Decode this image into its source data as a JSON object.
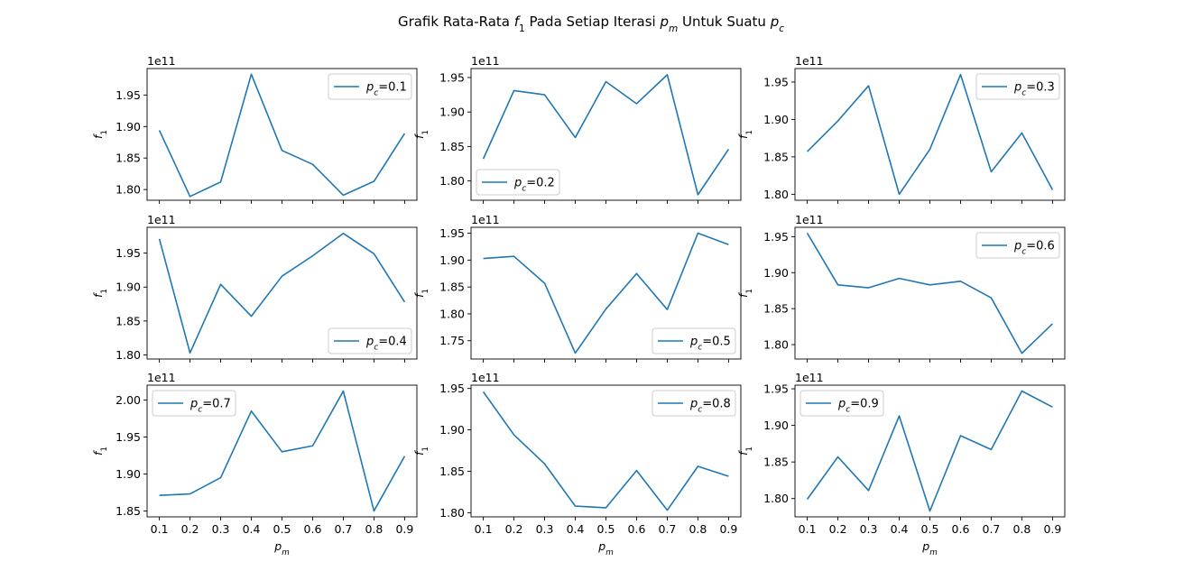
{
  "title": {
    "text": "Grafik Rata-Rata $f_1$ Pada Setiap Iterasi $p_m$ Untuk Suatu $p_c$",
    "parts": [
      {
        "t": "Grafik Rata-Rata "
      },
      {
        "t": "f",
        "i": true
      },
      {
        "t": "1",
        "sub": true
      },
      {
        "t": " Pada Setiap Iterasi "
      },
      {
        "t": "p",
        "i": true
      },
      {
        "t": "m",
        "sub": true,
        "i": true
      },
      {
        "t": " Untuk Suatu "
      },
      {
        "t": "p",
        "i": true
      },
      {
        "t": "c",
        "sub": true,
        "i": true
      }
    ]
  },
  "line_color": "#1f77b4",
  "chart_data": [
    {
      "type": "line",
      "x": [
        0.1,
        0.2,
        0.3,
        0.4,
        0.5,
        0.6,
        0.7,
        0.8,
        0.9
      ],
      "y": [
        1.894,
        1.789,
        1.812,
        1.983,
        1.862,
        1.84,
        1.791,
        1.813,
        1.889
      ],
      "offset": "1e11",
      "ylim": [
        1.783,
        1.992
      ],
      "yticks": [
        1.8,
        1.85,
        1.9,
        1.95
      ],
      "yticklabels": [
        "1.80",
        "1.85",
        "1.90",
        "1.95"
      ],
      "ylabel": "f1",
      "legend": {
        "label": "p_c=0.1",
        "loc": "upper-right"
      }
    },
    {
      "type": "line",
      "x": [
        0.1,
        0.2,
        0.3,
        0.4,
        0.5,
        0.6,
        0.7,
        0.8,
        0.9
      ],
      "y": [
        1.832,
        1.931,
        1.925,
        1.863,
        1.944,
        1.912,
        1.954,
        1.78,
        1.846
      ],
      "offset": "1e11",
      "ylim": [
        1.772,
        1.963
      ],
      "yticks": [
        1.8,
        1.85,
        1.9,
        1.95
      ],
      "yticklabels": [
        "1.80",
        "1.85",
        "1.90",
        "1.95"
      ],
      "ylabel": "f1",
      "legend": {
        "label": "p_c=0.2",
        "loc": "lower-left"
      }
    },
    {
      "type": "line",
      "x": [
        0.1,
        0.2,
        0.3,
        0.4,
        0.5,
        0.6,
        0.7,
        0.8,
        0.9
      ],
      "y": [
        1.857,
        1.898,
        1.945,
        1.8,
        1.86,
        1.96,
        1.83,
        1.882,
        1.806
      ],
      "offset": "1e11",
      "ylim": [
        1.792,
        1.968
      ],
      "yticks": [
        1.8,
        1.85,
        1.9,
        1.95
      ],
      "yticklabels": [
        "1.80",
        "1.85",
        "1.90",
        "1.95"
      ],
      "ylabel": "f1",
      "legend": {
        "label": "p_c=0.3",
        "loc": "upper-right"
      }
    },
    {
      "type": "line",
      "x": [
        0.1,
        0.2,
        0.3,
        0.4,
        0.5,
        0.6,
        0.7,
        0.8,
        0.9
      ],
      "y": [
        1.971,
        1.803,
        1.904,
        1.857,
        1.916,
        1.946,
        1.979,
        1.949,
        1.878
      ],
      "offset": "1e11",
      "ylim": [
        1.794,
        1.988
      ],
      "yticks": [
        1.8,
        1.85,
        1.9,
        1.95
      ],
      "yticklabels": [
        "1.80",
        "1.85",
        "1.90",
        "1.95"
      ],
      "ylabel": "f1",
      "legend": {
        "label": "p_c=0.4",
        "loc": "lower-right"
      }
    },
    {
      "type": "line",
      "x": [
        0.1,
        0.2,
        0.3,
        0.4,
        0.5,
        0.6,
        0.7,
        0.8,
        0.9
      ],
      "y": [
        1.903,
        1.907,
        1.857,
        1.727,
        1.809,
        1.875,
        1.808,
        1.95,
        1.929
      ],
      "offset": "1e11",
      "ylim": [
        1.716,
        1.961
      ],
      "yticks": [
        1.75,
        1.8,
        1.85,
        1.9,
        1.95
      ],
      "yticklabels": [
        "1.75",
        "1.80",
        "1.85",
        "1.90",
        "1.95"
      ],
      "ylabel": "f1",
      "legend": {
        "label": "p_c=0.5",
        "loc": "lower-right"
      }
    },
    {
      "type": "line",
      "x": [
        0.1,
        0.2,
        0.3,
        0.4,
        0.5,
        0.6,
        0.7,
        0.8,
        0.9
      ],
      "y": [
        1.955,
        1.883,
        1.879,
        1.892,
        1.883,
        1.888,
        1.865,
        1.788,
        1.829
      ],
      "offset": "1e11",
      "ylim": [
        1.78,
        1.963
      ],
      "yticks": [
        1.8,
        1.85,
        1.9,
        1.95
      ],
      "yticklabels": [
        "1.80",
        "1.85",
        "1.90",
        "1.95"
      ],
      "ylabel": "f1",
      "legend": {
        "label": "p_c=0.6",
        "loc": "upper-right"
      }
    },
    {
      "type": "line",
      "x": [
        0.1,
        0.2,
        0.3,
        0.4,
        0.5,
        0.6,
        0.7,
        0.8,
        0.9
      ],
      "y": [
        1.871,
        1.873,
        1.895,
        1.985,
        1.93,
        1.938,
        2.012,
        1.85,
        1.924
      ],
      "offset": "1e11",
      "ylim": [
        1.842,
        2.02
      ],
      "yticks": [
        1.85,
        1.9,
        1.95,
        2.0
      ],
      "yticklabels": [
        "1.85",
        "1.90",
        "1.95",
        "2.00"
      ],
      "ylabel": "f1",
      "xlabel": "p_m",
      "legend": {
        "label": "p_c=0.7",
        "loc": "upper-left"
      }
    },
    {
      "type": "line",
      "x": [
        0.1,
        0.2,
        0.3,
        0.4,
        0.5,
        0.6,
        0.7,
        0.8,
        0.9
      ],
      "y": [
        1.946,
        1.894,
        1.859,
        1.808,
        1.806,
        1.851,
        1.803,
        1.856,
        1.844
      ],
      "offset": "1e11",
      "ylim": [
        1.795,
        1.954
      ],
      "yticks": [
        1.8,
        1.85,
        1.9,
        1.95
      ],
      "yticklabels": [
        "1.80",
        "1.85",
        "1.90",
        "1.95"
      ],
      "ylabel": "f1",
      "xlabel": "p_m",
      "legend": {
        "label": "p_c=0.8",
        "loc": "upper-right"
      }
    },
    {
      "type": "line",
      "x": [
        0.1,
        0.2,
        0.3,
        0.4,
        0.5,
        0.6,
        0.7,
        0.8,
        0.9
      ],
      "y": [
        1.799,
        1.857,
        1.811,
        1.913,
        1.783,
        1.886,
        1.867,
        1.947,
        1.925
      ],
      "offset": "1e11",
      "ylim": [
        1.775,
        1.955
      ],
      "yticks": [
        1.8,
        1.85,
        1.9,
        1.95
      ],
      "yticklabels": [
        "1.80",
        "1.85",
        "1.90",
        "1.95"
      ],
      "ylabel": "f1",
      "xlabel": "p_m",
      "legend": {
        "label": "p_c=0.9",
        "loc": "upper-left"
      }
    }
  ],
  "xticks": [
    0.1,
    0.2,
    0.3,
    0.4,
    0.5,
    0.6,
    0.7,
    0.8,
    0.9
  ],
  "xticklabels": [
    "0.1",
    "0.2",
    "0.3",
    "0.4",
    "0.5",
    "0.6",
    "0.7",
    "0.8",
    "0.9"
  ]
}
